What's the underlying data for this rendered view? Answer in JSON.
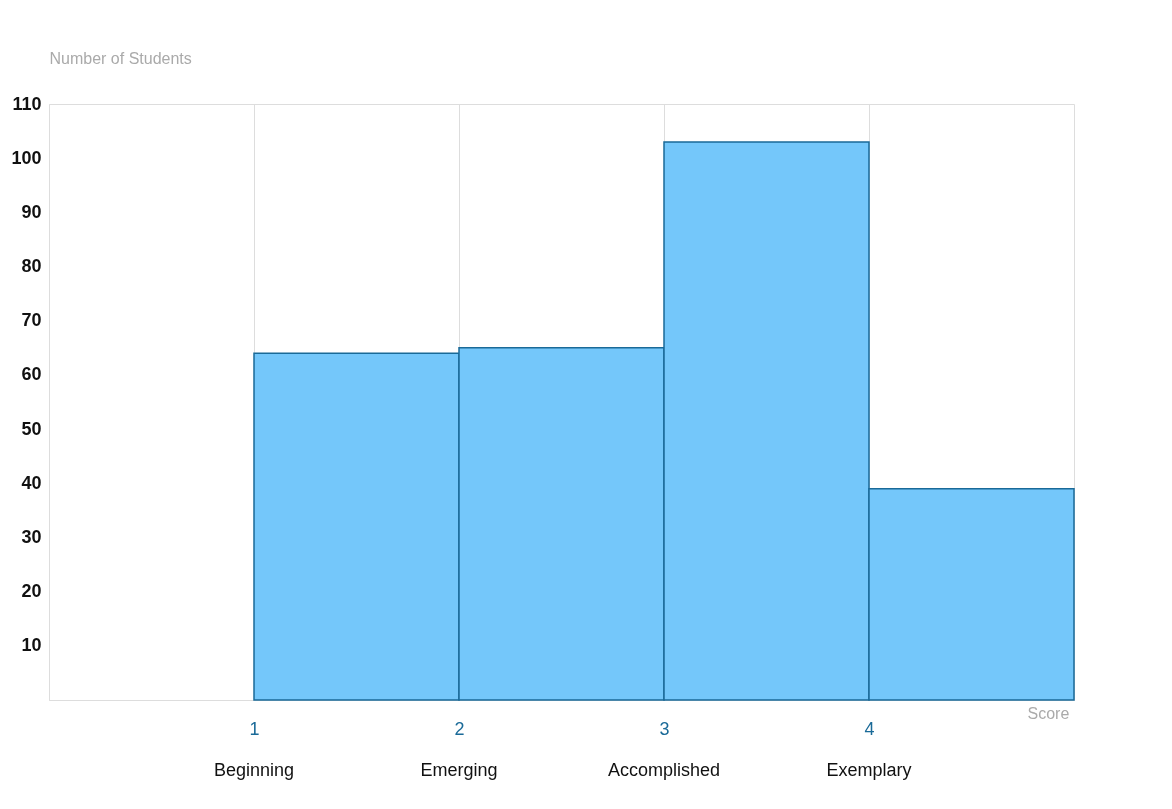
{
  "chart_data": {
    "type": "histogram",
    "xlabel": "Score",
    "ylabel": "Number of Students",
    "bins": [
      1,
      2,
      3,
      4,
      5
    ],
    "values": [
      64,
      65,
      103,
      39
    ],
    "color": "#74c7fa",
    "xlim": [
      0,
      5
    ],
    "xticks": [
      1,
      2,
      3,
      4
    ],
    "annotations": [
      "Beginning",
      "Emerging",
      "Accomplished",
      "Exemplary"
    ],
    "ylim": [
      0,
      110
    ],
    "yticks": [
      10,
      20,
      30,
      40,
      50,
      60,
      70,
      80,
      90,
      100,
      110
    ],
    "grid": "x",
    "legend": false
  }
}
